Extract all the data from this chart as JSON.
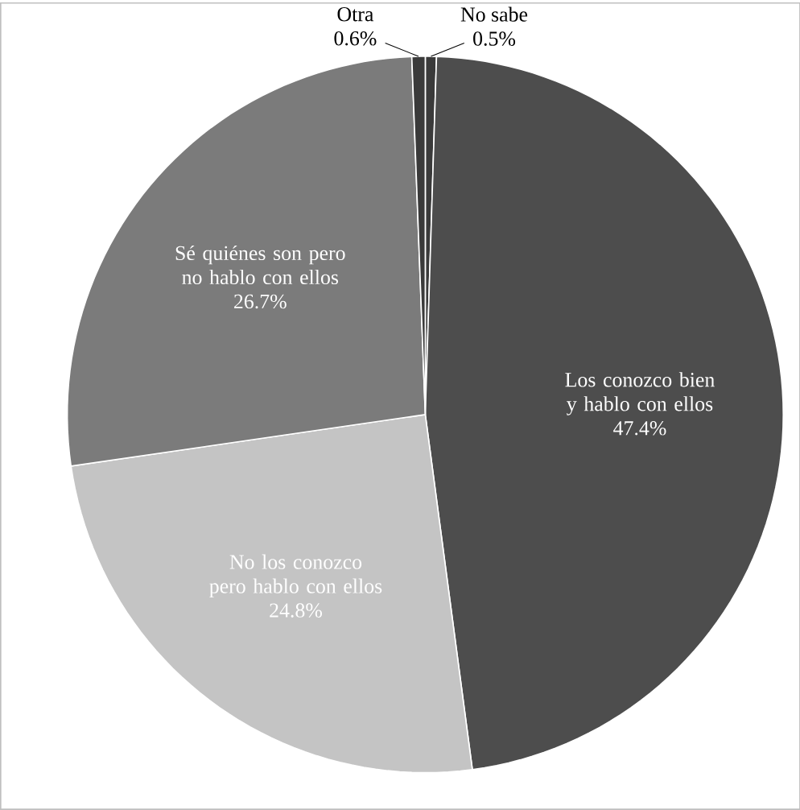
{
  "chart_data": {
    "type": "pie",
    "categories": [
      "No sabe",
      "Los conozco bien y hablo con ellos",
      "No los conozco pero hablo con ellos",
      "Sé quiénes son pero no hablo con ellos",
      "Otra"
    ],
    "values": [
      0.5,
      47.4,
      24.8,
      26.7,
      0.6
    ],
    "value_labels": [
      "0.5%",
      "47.4%",
      "24.8%",
      "26.7%",
      "0.6%"
    ],
    "colors": [
      "#3a3a3a",
      "#4d4d4d",
      "#c4c4c4",
      "#7b7b7b",
      "#3a3a3a"
    ]
  }
}
